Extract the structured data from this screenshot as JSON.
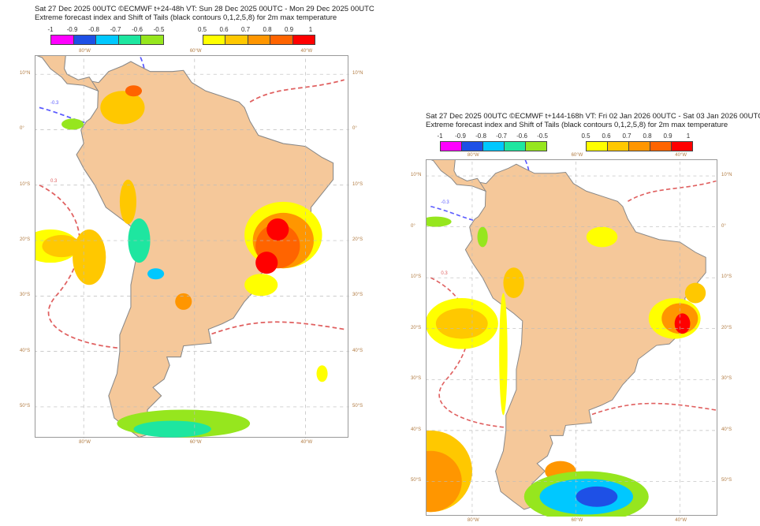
{
  "maps": [
    {
      "title1": "Sat 27 Dec 2025 00UTC ©ECMWF t+24-48h  VT: Sun 28 Dec 2025 00UTC - Mon 29 Dec 2025 00UTC",
      "title2": "Extreme forecast index and Shift of Tails (black contours 0,1,2,5,8) for 2m max temperature"
    },
    {
      "title1": "Sat 27 Dec 2025 00UTC ©ECMWF t+144-168h  VT: Fri 02 Jan 2026 00UTC - Sat 03 Jan 2026 00UTC",
      "title2": "Extreme forecast index and Shift of Tails (black contours 0,1,2,5,8) for 2m max temperature"
    }
  ],
  "colorbar": {
    "negative": {
      "ticks": [
        "-1",
        "-0.9",
        "-0.8",
        "-0.7",
        "-0.6",
        "-0.5"
      ],
      "colors": [
        "#ff00ff",
        "#1e50e6",
        "#00c8ff",
        "#1ee6a0",
        "#96e61e"
      ]
    },
    "positive": {
      "ticks": [
        "0.5",
        "0.6",
        "0.7",
        "0.8",
        "0.9",
        "1"
      ],
      "colors": [
        "#ffff00",
        "#ffc800",
        "#ff9600",
        "#ff6400",
        "#ff0000"
      ]
    }
  },
  "lon_labels": [
    "80°W",
    "60°W",
    "40°W"
  ],
  "lat_labels": [
    "10°N",
    "0°",
    "10°S",
    "20°S",
    "30°S",
    "40°S",
    "50°S"
  ],
  "contour_labels": {
    "neg": "-0.3",
    "pos": "0.3"
  },
  "colors": {
    "land": "#f5c89a",
    "ocean": "#ffffff",
    "neg_contour": "#5a5aff",
    "pos_contour": "#e06060"
  }
}
